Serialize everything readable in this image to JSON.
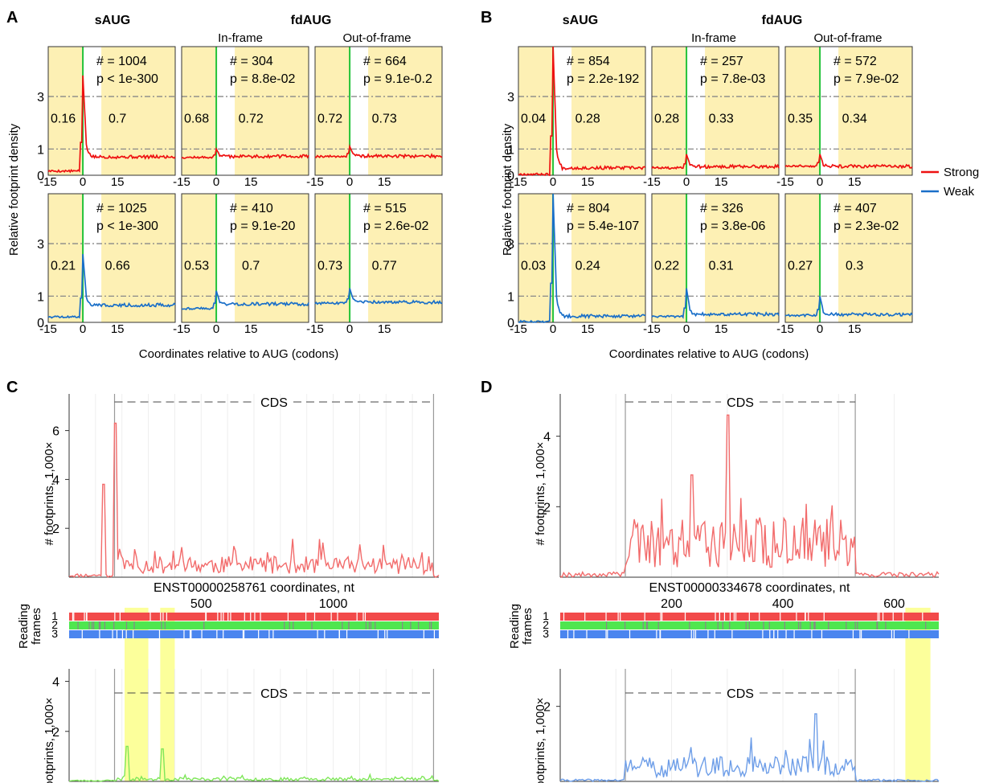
{
  "panels": [
    {
      "letter": "A",
      "saug": "sAUG",
      "fdaug": "fdAUG",
      "inframe": "In-frame",
      "outframe": "Out-of-frame",
      "ylabel": "Relative footprint density",
      "xlabel": "Coordinates relative to AUG (codons)",
      "y_ticks": [
        "0",
        "1",
        "3"
      ],
      "x_ticks": [
        "-15",
        "0",
        "15"
      ]
    },
    {
      "letter": "B",
      "saug": "sAUG",
      "fdaug": "fdAUG",
      "inframe": "In-frame",
      "outframe": "Out-of-frame",
      "ylabel": "Relative footprint density",
      "xlabel": "Coordinates relative to AUG (codons)",
      "y_ticks": [
        "0",
        "1",
        "3"
      ],
      "x_ticks": [
        "-15",
        "0",
        "15"
      ]
    },
    {
      "letter": "C"
    },
    {
      "letter": "D"
    }
  ],
  "legend": [
    {
      "name": "Strong",
      "color": "#ee1111"
    },
    {
      "name": "Weak",
      "color": "#1a6fc8"
    }
  ],
  "chart_data": [
    {
      "type": "line",
      "panel": "A",
      "series": "Strong",
      "cells": [
        {
          "group": "sAUG",
          "count": "# = 1004",
          "p": "p < 1e-300",
          "left": "0.16",
          "right": "0.7",
          "peak": 3.8
        },
        {
          "group": "In-frame",
          "count": "# = 304",
          "p": "p = 8.8e-02",
          "left": "0.68",
          "right": "0.72",
          "peak": 1.0
        },
        {
          "group": "Out-of-frame",
          "count": "# = 664",
          "p": "p = 9.1e-0.2",
          "left": "0.72",
          "right": "0.73",
          "peak": 1.1
        }
      ]
    },
    {
      "type": "line",
      "panel": "A",
      "series": "Weak",
      "cells": [
        {
          "group": "sAUG",
          "count": "# = 1025",
          "p": "p < 1e-300",
          "left": "0.21",
          "right": "0.66",
          "peak": 2.6
        },
        {
          "group": "In-frame",
          "count": "# = 410",
          "p": "p = 9.1e-20",
          "left": "0.53",
          "right": "0.7",
          "peak": 1.2
        },
        {
          "group": "Out-of-frame",
          "count": "# = 515",
          "p": "p = 2.6e-02",
          "left": "0.73",
          "right": "0.77",
          "peak": 1.3
        }
      ]
    },
    {
      "type": "line",
      "panel": "B",
      "series": "Strong",
      "cells": [
        {
          "group": "sAUG",
          "count": "# = 854",
          "p": "p = 2.2e-192",
          "left": "0.04",
          "right": "0.28",
          "peak": 4.9
        },
        {
          "group": "In-frame",
          "count": "# = 257",
          "p": "p = 7.8e-03",
          "left": "0.28",
          "right": "0.33",
          "peak": 0.8
        },
        {
          "group": "Out-of-frame",
          "count": "# = 572",
          "p": "p = 7.9e-02",
          "left": "0.35",
          "right": "0.34",
          "peak": 0.8
        }
      ]
    },
    {
      "type": "line",
      "panel": "B",
      "series": "Weak",
      "cells": [
        {
          "group": "sAUG",
          "count": "# = 804",
          "p": "p = 5.4e-107",
          "left": "0.03",
          "right": "0.24",
          "peak": 4.9
        },
        {
          "group": "In-frame",
          "count": "# = 326",
          "p": "p = 3.8e-06",
          "left": "0.22",
          "right": "0.31",
          "peak": 1.3
        },
        {
          "group": "Out-of-frame",
          "count": "# = 407",
          "p": "p = 2.3e-02",
          "left": "0.27",
          "right": "0.3",
          "peak": 1.0
        }
      ]
    },
    {
      "type": "line",
      "panel": "C",
      "transcript": "ENST00000258761 coordinates, nt",
      "ylabel": "# footprints, 1,000×",
      "cds_label": "CDS",
      "frames_label": [
        "Reading",
        "frames"
      ],
      "frame_numbers": [
        "1",
        "2",
        "3"
      ],
      "x_ticks": [
        {
          "v": 500,
          "label": "500"
        },
        {
          "v": 1000,
          "label": "1000"
        }
      ],
      "x_range": [
        0,
        1400
      ],
      "cds_range": [
        172,
        1380
      ],
      "top_ylim": [
        0,
        7.5
      ],
      "top_ticks": [
        "2",
        "4",
        "6"
      ],
      "bottom_ylim": [
        0,
        4.5
      ],
      "bottom_ticks": [
        "2",
        "4"
      ],
      "top_peaks": [
        {
          "x": 130,
          "y": 3.8
        },
        {
          "x": 172,
          "y": 6.3
        }
      ],
      "bottom_peaks": [
        {
          "x": 222,
          "y": 1.4
        },
        {
          "x": 355,
          "y": 1.3
        }
      ],
      "highlights": [
        [
          210,
          300
        ],
        [
          345,
          400
        ]
      ],
      "top_color": "#f26b6b",
      "bottom_color": "#7fe65a"
    },
    {
      "type": "line",
      "panel": "D",
      "transcript": "ENST00000334678 coordinates, nt",
      "ylabel": "# footprints, 1,000×",
      "cds_label": "CDS",
      "frames_label": [
        "Reading",
        "frames"
      ],
      "frame_numbers": [
        "1",
        "2",
        "3"
      ],
      "x_ticks": [
        {
          "v": 200,
          "label": "200"
        },
        {
          "v": 400,
          "label": "400"
        },
        {
          "v": 600,
          "label": "600"
        }
      ],
      "x_range": [
        0,
        680
      ],
      "cds_range": [
        117,
        530
      ],
      "top_ylim": [
        0,
        5.2
      ],
      "top_ticks": [
        "2",
        "4"
      ],
      "bottom_ylim": [
        0,
        3.0
      ],
      "bottom_ticks": [
        "2"
      ],
      "top_peaks": [
        {
          "x": 300,
          "y": 4.6
        },
        {
          "x": 235,
          "y": 2.9
        }
      ],
      "bottom_peaks": [
        {
          "x": 458,
          "y": 1.8
        }
      ],
      "highlights": [
        [
          620,
          665
        ]
      ],
      "top_color": "#f26b6b",
      "bottom_color": "#6e9ee8"
    }
  ]
}
